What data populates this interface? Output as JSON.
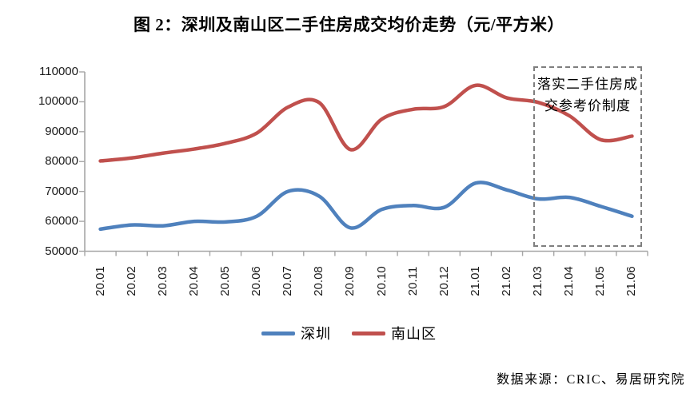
{
  "figure": {
    "title": "图 2：深圳及南山区二手住房成交均价走势（元/平方米）",
    "source": "数据来源：CRIC、易居研究院",
    "annotation": {
      "line1": "落实二手住房成",
      "line2": "交参考价制度"
    }
  },
  "chart_data": {
    "type": "line",
    "title": "图 2：深圳及南山区二手住房成交均价走势（元/平方米）",
    "unit": "元/平方米",
    "categories": [
      "20.01",
      "20.02",
      "20.03",
      "20.04",
      "20.05",
      "20.06",
      "20.07",
      "20.08",
      "20.09",
      "20.10",
      "20.11",
      "20.12",
      "21.01",
      "21.02",
      "21.03",
      "21.04",
      "21.05",
      "21.06"
    ],
    "series": [
      {
        "name": "深圳",
        "color": "#4F81BD",
        "values": [
          57400,
          58800,
          58500,
          60000,
          59800,
          61700,
          70000,
          68400,
          57800,
          64000,
          65300,
          64700,
          72800,
          70500,
          67500,
          68000,
          65000,
          61700
        ]
      },
      {
        "name": "南山区",
        "color": "#C0504D",
        "values": [
          80200,
          81200,
          82800,
          84200,
          86100,
          89500,
          98200,
          99700,
          84000,
          94200,
          97500,
          98400,
          105500,
          101300,
          99800,
          95300,
          87300,
          88500
        ]
      }
    ],
    "ylim": [
      50000,
      110000
    ],
    "ytick_step": 10000,
    "grid": false,
    "smoothed": true,
    "legend_position": "bottom",
    "axis_color": "#A6A6A6",
    "annotation": {
      "text": "落实二手住房成交参考价制度",
      "applies_to_categories": [
        "21.03",
        "21.04",
        "21.05",
        "21.06"
      ]
    }
  }
}
